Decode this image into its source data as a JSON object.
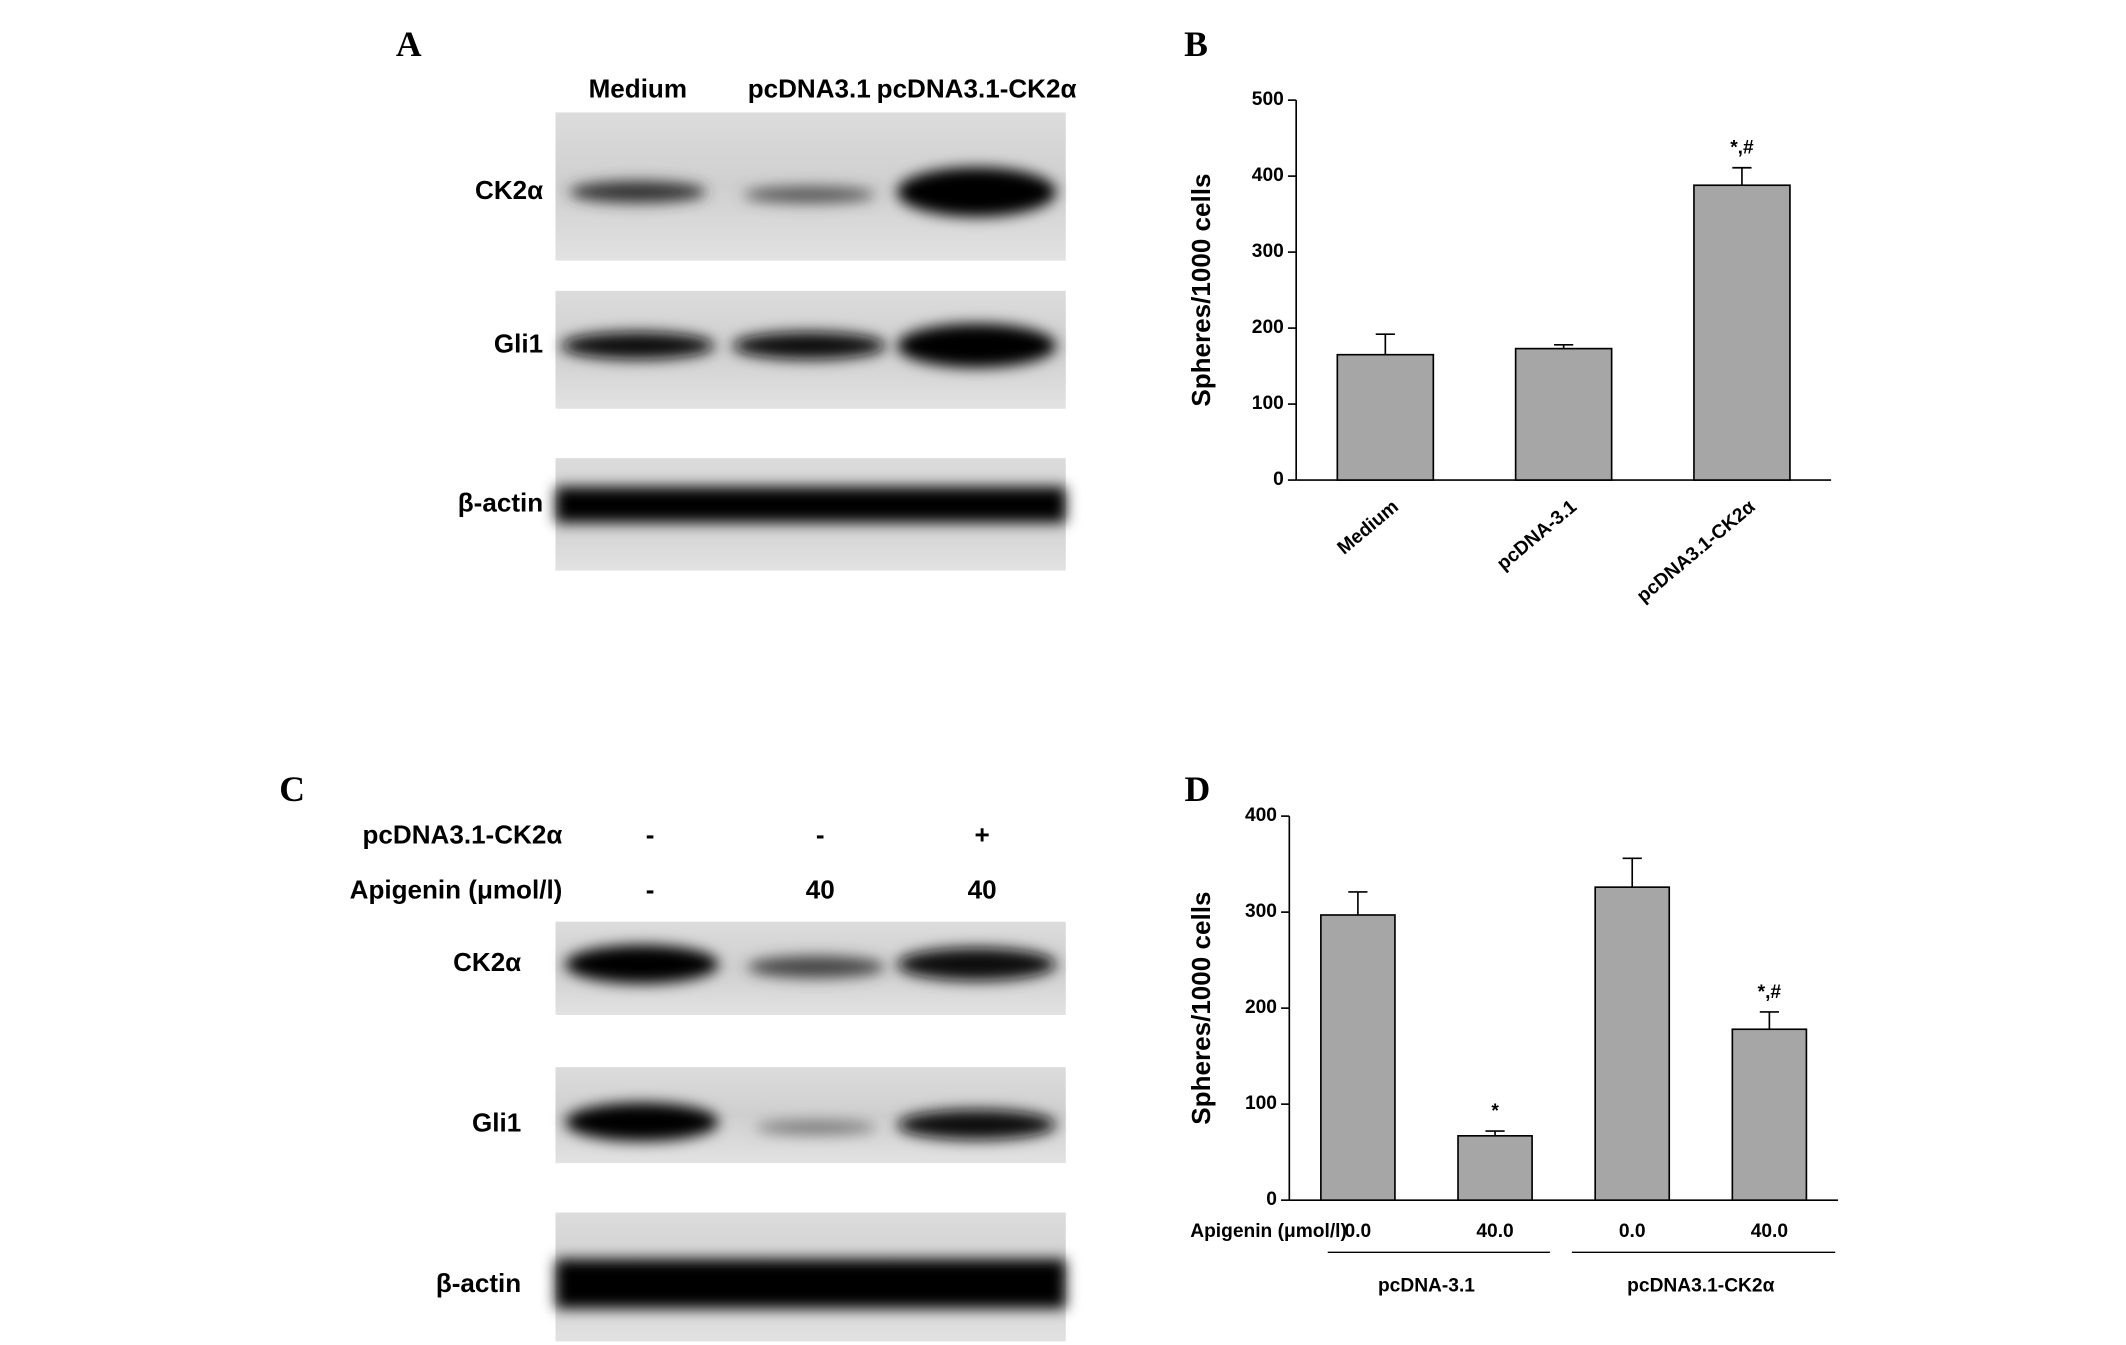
{
  "blot_a": {
    "label": "A",
    "lanes": [
      "Medium",
      "pcDNA3.1",
      "pcDNA3.1-CK2α"
    ],
    "rows": [
      "CK2α",
      "Gli1",
      "β-actin"
    ]
  },
  "blot_c": {
    "label": "C",
    "conditions": [
      {
        "name": "pcDNA3.1-CK2α",
        "values": [
          "-",
          "-",
          "+"
        ]
      },
      {
        "name": "Apigenin (μmol/l)",
        "values": [
          "-",
          "40",
          "40"
        ]
      }
    ],
    "rows": [
      "CK2α",
      "Gli1",
      "β-actin"
    ]
  },
  "chart_data": [
    {
      "type": "bar",
      "label": "B",
      "ylabel": "Spheres/1000 cells",
      "categories": [
        "Medium",
        "pcDNA-3.1",
        "pcDNA3.1-CK2α"
      ],
      "values": [
        165,
        173,
        388
      ],
      "errors": [
        27,
        5,
        23
      ],
      "annotations": [
        null,
        null,
        "*,#"
      ],
      "color": "#a6a6a6",
      "ylim": [
        0,
        500
      ],
      "yticks": [
        0,
        100,
        200,
        300,
        400,
        500
      ]
    },
    {
      "type": "bar",
      "label": "D",
      "ylabel": "Spheres/1000 cells",
      "xlabel": "Apigenin (μmol/l)",
      "categories": [
        "0.0",
        "40.0",
        "0.0",
        "40.0"
      ],
      "groups": [
        "pcDNA-3.1",
        "pcDNA3.1-CK2α"
      ],
      "values": [
        297,
        67,
        326,
        178
      ],
      "errors": [
        24,
        5,
        30,
        18
      ],
      "annotations": [
        null,
        "*",
        null,
        "*,#"
      ],
      "color": "#a6a6a6",
      "ylim": [
        0,
        400
      ],
      "yticks": [
        0,
        100,
        200,
        300,
        400
      ]
    }
  ]
}
